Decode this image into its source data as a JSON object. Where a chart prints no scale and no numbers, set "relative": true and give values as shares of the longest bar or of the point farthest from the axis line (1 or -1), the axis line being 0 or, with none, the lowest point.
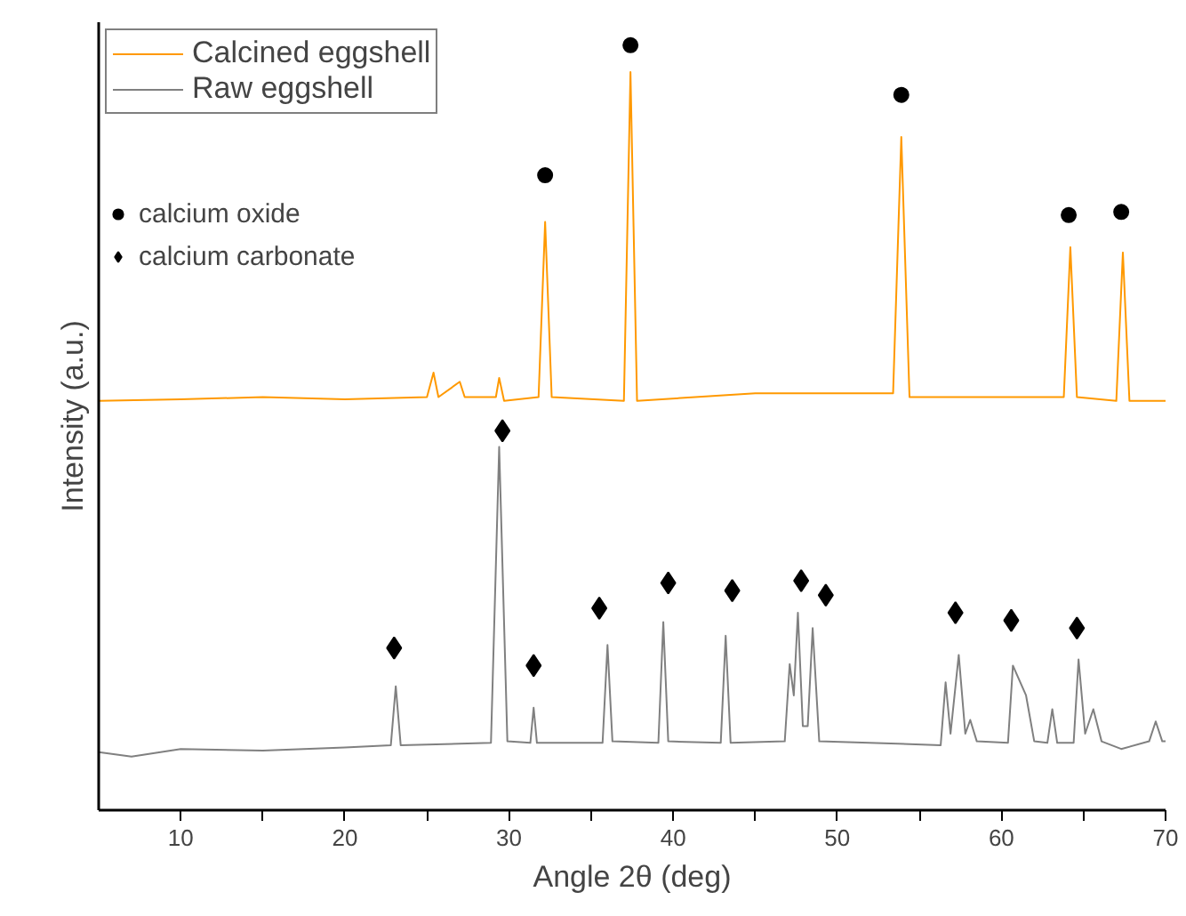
{
  "chart_data": {
    "type": "line",
    "relative": true,
    "xlabel": "Angle 2θ (deg)",
    "ylabel": "Intensity (a.u.)",
    "xlim": [
      5,
      70
    ],
    "xticks": [
      10,
      {
        "value": 15,
        "label": null
      },
      20,
      {
        "value": 25,
        "label": null
      },
      30,
      {
        "value": 35,
        "label": null
      },
      40,
      {
        "value": 45,
        "label": null
      },
      50,
      {
        "value": 55,
        "label": null
      },
      60,
      {
        "value": 65,
        "label": null
      },
      70
    ],
    "grid": false,
    "legend": "top left",
    "line_style": "solid",
    "marker": "none",
    "series": [
      {
        "name": "Calcined eggshell",
        "color": "#ff9900",
        "x": [
          5,
          10,
          15,
          20,
          25,
          25.4,
          25.7,
          27.0,
          27.3,
          29.2,
          29.4,
          29.7,
          31.8,
          32.2,
          32.6,
          37.0,
          37.4,
          37.8,
          45,
          53.4,
          53.9,
          54.4,
          63.8,
          64.2,
          64.6,
          67.0,
          67.4,
          67.8,
          70
        ],
        "values": [
          0.535,
          0.537,
          0.54,
          0.537,
          0.54,
          0.572,
          0.54,
          0.56,
          0.54,
          0.54,
          0.565,
          0.535,
          0.54,
          0.769,
          0.54,
          0.535,
          0.965,
          0.535,
          0.545,
          0.545,
          0.88,
          0.54,
          0.54,
          0.736,
          0.54,
          0.535,
          0.729,
          0.535,
          0.535
        ]
      },
      {
        "name": "Raw eggshell",
        "color": "#808080",
        "x": [
          5,
          7,
          10,
          15,
          20,
          22.8,
          23.1,
          23.4,
          28.9,
          29.4,
          29.9,
          31.3,
          31.5,
          31.7,
          35.7,
          36.0,
          36.3,
          39.1,
          39.4,
          39.7,
          42.9,
          43.2,
          43.5,
          46.8,
          47.1,
          47.35,
          47.6,
          47.9,
          48.2,
          48.5,
          48.9,
          56.3,
          56.6,
          56.9,
          57.4,
          57.8,
          58.1,
          58.5,
          60.4,
          60.7,
          61.5,
          62.0,
          62.8,
          63.1,
          63.4,
          64.4,
          64.7,
          65.1,
          65.6,
          66.1,
          67.3,
          69.0,
          69.4,
          69.8,
          70
        ],
        "values": [
          0.076,
          0.07,
          0.08,
          0.078,
          0.082,
          0.085,
          0.162,
          0.085,
          0.088,
          0.475,
          0.09,
          0.088,
          0.134,
          0.088,
          0.088,
          0.216,
          0.09,
          0.088,
          0.246,
          0.09,
          0.088,
          0.228,
          0.088,
          0.09,
          0.191,
          0.15,
          0.258,
          0.11,
          0.11,
          0.238,
          0.09,
          0.085,
          0.167,
          0.1,
          0.203,
          0.1,
          0.118,
          0.09,
          0.088,
          0.189,
          0.15,
          0.09,
          0.088,
          0.132,
          0.088,
          0.088,
          0.197,
          0.1,
          0.132,
          0.09,
          0.08,
          0.09,
          0.116,
          0.09,
          0.09
        ]
      },
      {
        "name": "calcium oxide",
        "type": "scatter",
        "marker": "circle",
        "color": "#000000",
        "x": [
          32.2,
          37.4,
          53.9,
          64.1,
          67.3
        ],
        "values": [
          0.83,
          1.0,
          0.935,
          0.778,
          0.782
        ]
      },
      {
        "name": "calcium carbonate",
        "type": "scatter",
        "marker": "diamond",
        "color": "#000000",
        "x": [
          23.0,
          29.6,
          31.5,
          35.5,
          39.7,
          43.6,
          47.8,
          49.3,
          57.2,
          60.6,
          64.6
        ],
        "values": [
          0.212,
          0.496,
          0.189,
          0.264,
          0.297,
          0.287,
          0.3,
          0.281,
          0.258,
          0.248,
          0.238
        ]
      }
    ]
  }
}
